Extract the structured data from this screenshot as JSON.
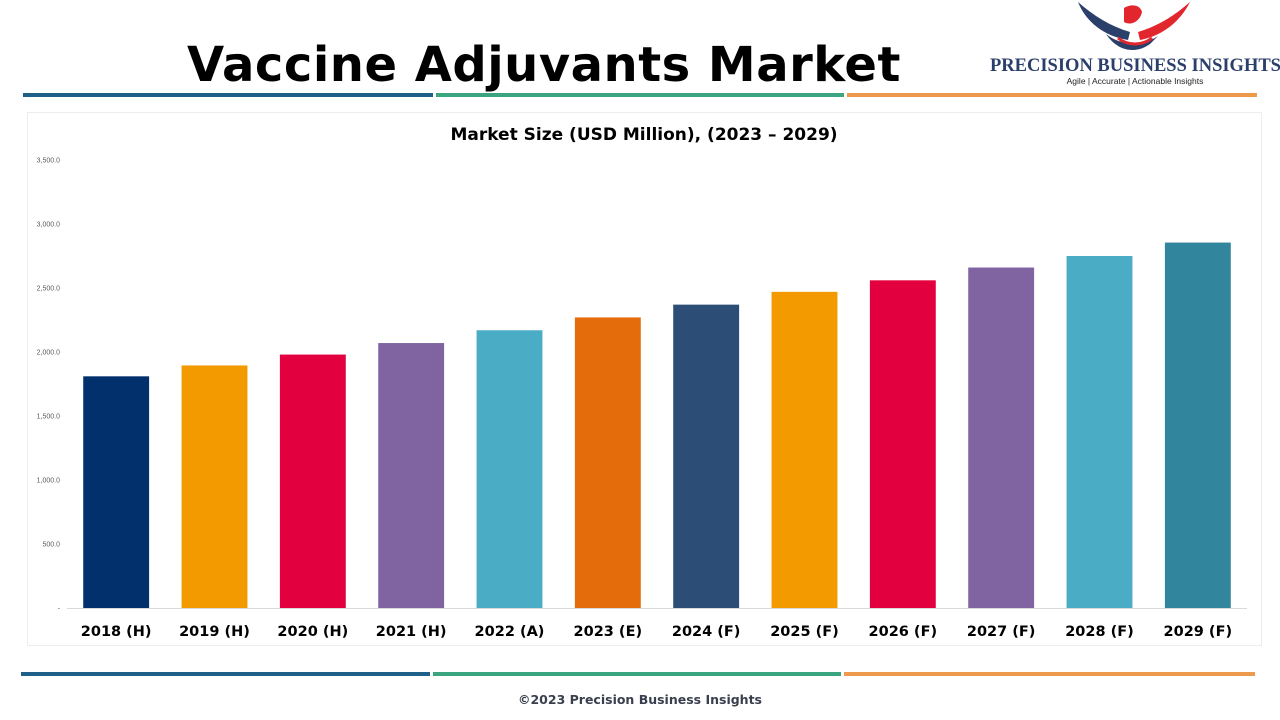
{
  "header": {
    "title": "Vaccine Adjuvants Market"
  },
  "logo": {
    "name": "PRECISION BUSINESS INSIGHTS",
    "tagline": "Agile | Accurate | Actionable Insights"
  },
  "colors": {
    "stripe_blue": "#1e6088",
    "stripe_green": "#3aa57f",
    "stripe_orange": "#ee9a4d"
  },
  "footer": {
    "copyright": "©2023 Precision Business Insights"
  },
  "chart_data": {
    "type": "bar",
    "title": "Market Size (USD Million), (2023 – 2029)",
    "xlabel": "",
    "ylabel": "",
    "ylim": [
      0,
      3500
    ],
    "yticks": [
      0,
      500,
      1000,
      1500,
      2000,
      2500,
      3000,
      3500
    ],
    "ytick_labels": [
      "-",
      "500.0",
      "1,000.0",
      "1,500.0",
      "2,000.0",
      "2,500.0",
      "3,000.0",
      "3,500.0"
    ],
    "grid": false,
    "legend": "none",
    "categories": [
      "2018 (H)",
      "2019 (H)",
      "2020 (H)",
      "2021 (H)",
      "2022 (A)",
      "2023 (E)",
      "2024 (F)",
      "2025 (F)",
      "2026 (F)",
      "2027 (F)",
      "2028 (F)",
      "2029 (F)"
    ],
    "values": [
      1810,
      1895,
      1980,
      2070,
      2170,
      2270,
      2370,
      2470,
      2560,
      2660,
      2750,
      2855
    ],
    "bar_colors": [
      "#01306d",
      "#f29a00",
      "#e2003f",
      "#8064a2",
      "#4bacc6",
      "#e46c0a",
      "#2c4d75",
      "#f29a00",
      "#e2003f",
      "#8064a2",
      "#4bacc6",
      "#31859c"
    ]
  }
}
